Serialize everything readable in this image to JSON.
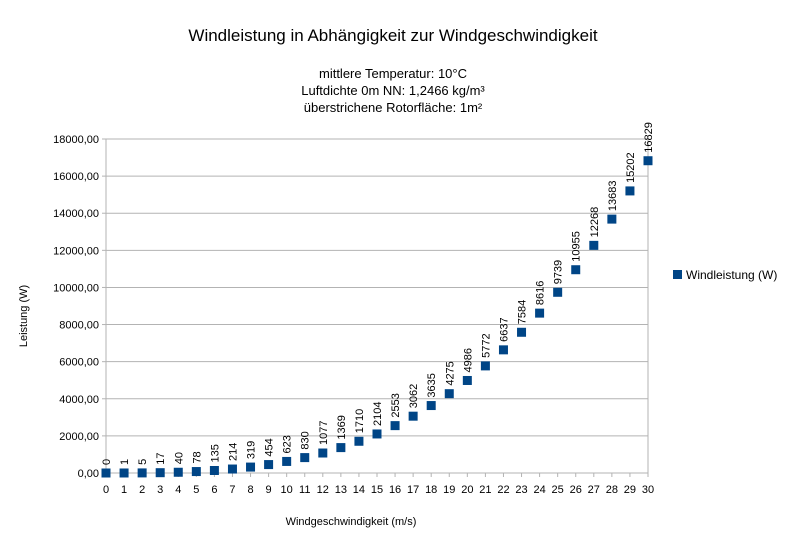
{
  "chart_data": {
    "type": "scatter",
    "title": "Windleistung in Abhängigkeit zur Windgeschwindigkeit",
    "subtitle": [
      "mittlere Temperatur: 10°C",
      "Luftdichte 0m NN: 1,2466 kg/m³",
      "überstrichene Rotorfläche: 1m²"
    ],
    "xlabel": "Windgeschwindigkeit (m/s)",
    "ylabel": "Leistung (W)",
    "xlim": [
      0,
      30
    ],
    "ylim": [
      0,
      18000
    ],
    "x_ticks": [
      "0",
      "1",
      "2",
      "3",
      "4",
      "5",
      "6",
      "7",
      "8",
      "9",
      "10",
      "11",
      "12",
      "13",
      "14",
      "15",
      "16",
      "17",
      "18",
      "19",
      "20",
      "21",
      "22",
      "23",
      "24",
      "25",
      "26",
      "27",
      "28",
      "29",
      "30"
    ],
    "y_ticks": [
      "0,00",
      "2000,00",
      "4000,00",
      "6000,00",
      "8000,00",
      "10000,00",
      "12000,00",
      "14000,00",
      "16000,00",
      "18000,00"
    ],
    "grid": "horizontal",
    "legend_position": "right",
    "series": [
      {
        "name": "Windleistung (W)",
        "color": "#004586",
        "x": [
          0,
          1,
          2,
          3,
          4,
          5,
          6,
          7,
          8,
          9,
          10,
          11,
          12,
          13,
          14,
          15,
          16,
          17,
          18,
          19,
          20,
          21,
          22,
          23,
          24,
          25,
          26,
          27,
          28,
          29,
          30
        ],
        "values": [
          0,
          1,
          5,
          17,
          40,
          78,
          135,
          214,
          319,
          454,
          623,
          830,
          1077,
          1369,
          1710,
          2104,
          2553,
          3062,
          3635,
          4275,
          4986,
          5772,
          6637,
          7584,
          8616,
          9739,
          10955,
          12268,
          13683,
          15202,
          16829
        ],
        "labels": [
          "0",
          "1",
          "5",
          "17",
          "40",
          "78",
          "135",
          "214",
          "319",
          "454",
          "623",
          "830",
          "1077",
          "1369",
          "1710",
          "2104",
          "2553",
          "3062",
          "3635",
          "4275",
          "4986",
          "5772",
          "6637",
          "7584",
          "8616",
          "9739",
          "10955",
          "12268",
          "13683",
          "15202",
          "16829"
        ]
      }
    ]
  }
}
